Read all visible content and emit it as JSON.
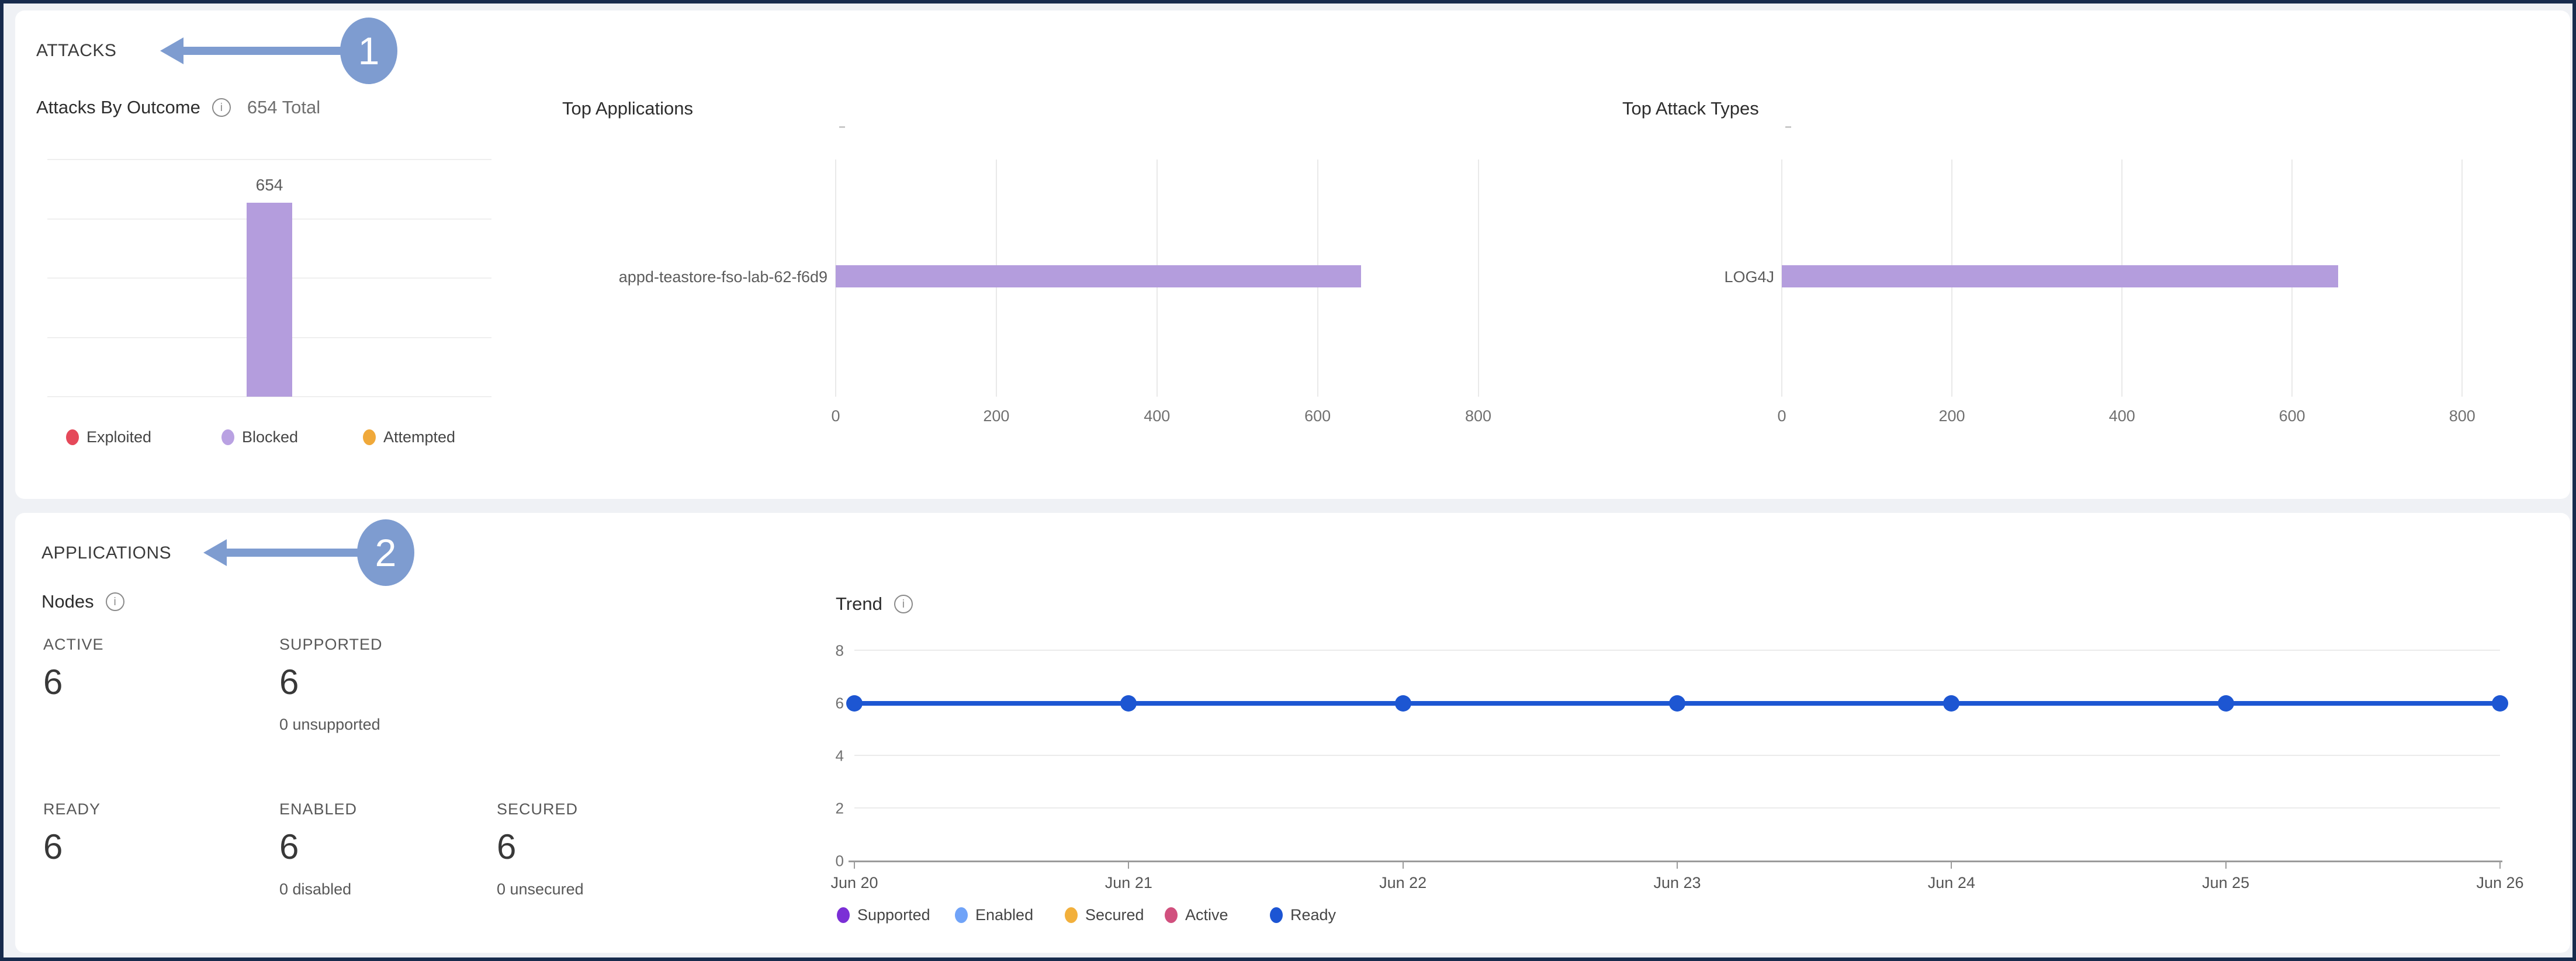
{
  "icons": {
    "info_glyph": "i"
  },
  "annotations": {
    "arrow_color": "#7E9CD0",
    "steps": [
      {
        "number": "1"
      },
      {
        "number": "2"
      }
    ]
  },
  "attacks_section": {
    "label": "ATTACKS",
    "outcome": {
      "title": "Attacks By Outcome",
      "total": "654 Total"
    },
    "top_applications": {
      "title": "Top Applications"
    },
    "top_attack_types": {
      "title": "Top Attack Types"
    }
  },
  "applications_section": {
    "label": "APPLICATIONS",
    "nodes": {
      "title": "Nodes",
      "metrics": [
        {
          "caption": "ACTIVE",
          "value": "6"
        },
        {
          "caption": "SUPPORTED",
          "value": "6",
          "sub": "0 unsupported"
        },
        {
          "caption": "READY",
          "value": "6"
        },
        {
          "caption": "ENABLED",
          "value": "6",
          "sub": "0 disabled"
        },
        {
          "caption": "SECURED",
          "value": "6",
          "sub": "0 unsecured"
        }
      ]
    },
    "trend": {
      "title": "Trend"
    }
  },
  "chart_data": [
    {
      "id": "attacks-by-outcome",
      "type": "bar",
      "title": "Attacks By Outcome",
      "total_label": "654 Total",
      "categories": [
        "Blocked"
      ],
      "values": [
        654
      ],
      "ylim": [
        0,
        800
      ],
      "gridlines": [
        0,
        200,
        400,
        600,
        800
      ],
      "bar_color": "#B49DDD",
      "legend": [
        {
          "label": "Exploited",
          "color": "#E5495A"
        },
        {
          "label": "Blocked",
          "color": "#B9A1E2"
        },
        {
          "label": "Attempted",
          "color": "#F0A93A"
        }
      ]
    },
    {
      "id": "top-applications",
      "type": "bar",
      "orientation": "horizontal",
      "title": "Top Applications",
      "categories": [
        "appd-teastore-fso-lab-62-f6d9"
      ],
      "values": [
        654
      ],
      "xlim": [
        0,
        800
      ],
      "xticks": [
        0,
        200,
        400,
        600,
        800
      ],
      "bar_color": "#B49DDD"
    },
    {
      "id": "top-attack-types",
      "type": "bar",
      "orientation": "horizontal",
      "title": "Top Attack Types",
      "categories": [
        "LOG4J"
      ],
      "values": [
        654
      ],
      "xlim": [
        0,
        800
      ],
      "xticks": [
        0,
        200,
        400,
        600,
        800
      ],
      "bar_color": "#B49DDD"
    },
    {
      "id": "trend",
      "type": "line",
      "title": "Trend",
      "x": [
        "Jun 20",
        "Jun 21",
        "Jun 22",
        "Jun 23",
        "Jun 24",
        "Jun 25",
        "Jun 26"
      ],
      "ylim": [
        0,
        8
      ],
      "yticks": [
        0,
        2,
        4,
        6,
        8
      ],
      "line_color": "#1D56D2",
      "series": [
        {
          "name": "Supported",
          "color": "#7B2FD6",
          "values": [
            6,
            6,
            6,
            6,
            6,
            6,
            6
          ]
        },
        {
          "name": "Enabled",
          "color": "#70A3F8",
          "values": [
            6,
            6,
            6,
            6,
            6,
            6,
            6
          ]
        },
        {
          "name": "Secured",
          "color": "#F2B03C",
          "values": [
            6,
            6,
            6,
            6,
            6,
            6,
            6
          ]
        },
        {
          "name": "Active",
          "color": "#D1507E",
          "values": [
            6,
            6,
            6,
            6,
            6,
            6,
            6
          ]
        },
        {
          "name": "Ready",
          "color": "#1C55D4",
          "values": [
            6,
            6,
            6,
            6,
            6,
            6,
            6
          ]
        }
      ]
    }
  ]
}
